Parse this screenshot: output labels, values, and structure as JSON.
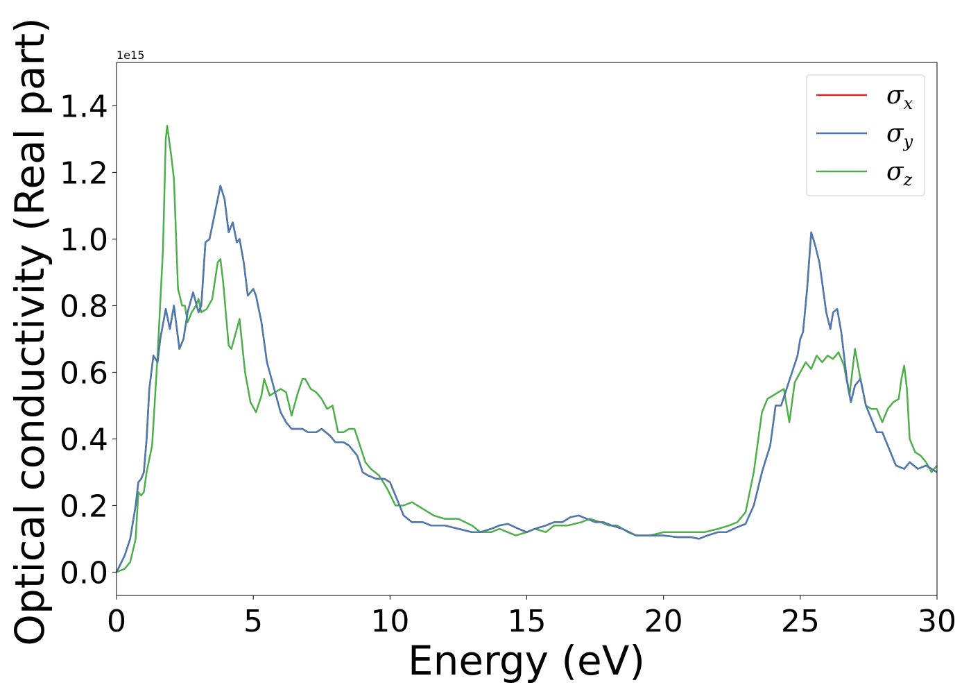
{
  "chart_data": {
    "type": "line",
    "title": "",
    "xlabel": "Energy (eV)",
    "ylabel": "Optical conductivity (Real part)",
    "y_offset_label": "1e15",
    "xlim": [
      0,
      30
    ],
    "ylim": [
      -0.07,
      1.53
    ],
    "xticks": [
      0,
      5,
      10,
      15,
      20,
      25,
      30
    ],
    "xtick_labels": [
      "0",
      "5",
      "10",
      "15",
      "20",
      "25",
      "30"
    ],
    "yticks": [
      0.0,
      0.2,
      0.4,
      0.6,
      0.8,
      1.0,
      1.2,
      1.4
    ],
    "ytick_labels": [
      "0.0",
      "0.2",
      "0.4",
      "0.6",
      "0.8",
      "1.0",
      "1.2",
      "1.4"
    ],
    "grid": false,
    "legend_position": "top-right",
    "series": [
      {
        "name": "σx",
        "legend_symbol": "σ",
        "legend_sub": "x",
        "color": "#d62728",
        "x": [
          0,
          0.3,
          0.5,
          0.7,
          0.8,
          0.9,
          1.0,
          1.1,
          1.2,
          1.35,
          1.5,
          1.6,
          1.8,
          1.95,
          2.1,
          2.3,
          2.45,
          2.6,
          2.8,
          3.0,
          3.1,
          3.25,
          3.4,
          3.6,
          3.8,
          3.95,
          4.1,
          4.25,
          4.4,
          4.5,
          4.65,
          4.8,
          5.0,
          5.1,
          5.3,
          5.5,
          5.8,
          6.0,
          6.2,
          6.4,
          6.6,
          6.8,
          7.0,
          7.3,
          7.5,
          7.8,
          8.0,
          8.3,
          8.5,
          8.8,
          9.0,
          9.2,
          9.5,
          9.8,
          10.0,
          10.2,
          10.5,
          10.8,
          11.2,
          11.5,
          12.0,
          12.5,
          13.0,
          13.3,
          13.7,
          14.0,
          14.3,
          14.7,
          15.0,
          15.3,
          15.7,
          16.0,
          16.3,
          16.6,
          16.9,
          17.2,
          17.5,
          17.8,
          18.1,
          18.5,
          19.0,
          19.5,
          20.0,
          20.5,
          21.0,
          21.3,
          21.6,
          22.0,
          22.3,
          22.7,
          23.0,
          23.3,
          23.6,
          23.9,
          24.1,
          24.3,
          24.5,
          24.7,
          24.9,
          25.0,
          25.1,
          25.25,
          25.4,
          25.55,
          25.7,
          25.8,
          25.95,
          26.1,
          26.2,
          26.35,
          26.5,
          26.7,
          26.85,
          27.0,
          27.2,
          27.4,
          27.6,
          27.8,
          28.0,
          28.2,
          28.5,
          28.8,
          29.0,
          29.3,
          29.6,
          29.8,
          30.0
        ],
        "values": [
          0,
          0.05,
          0.1,
          0.2,
          0.27,
          0.28,
          0.3,
          0.4,
          0.55,
          0.65,
          0.63,
          0.7,
          0.79,
          0.73,
          0.8,
          0.67,
          0.7,
          0.78,
          0.84,
          0.78,
          0.8,
          0.99,
          1.0,
          1.08,
          1.16,
          1.12,
          1.02,
          1.05,
          0.99,
          1.0,
          0.93,
          0.83,
          0.85,
          0.83,
          0.75,
          0.63,
          0.54,
          0.48,
          0.45,
          0.43,
          0.43,
          0.43,
          0.42,
          0.42,
          0.43,
          0.41,
          0.39,
          0.39,
          0.38,
          0.35,
          0.3,
          0.29,
          0.28,
          0.28,
          0.27,
          0.23,
          0.17,
          0.15,
          0.15,
          0.14,
          0.14,
          0.13,
          0.12,
          0.12,
          0.13,
          0.14,
          0.145,
          0.13,
          0.12,
          0.13,
          0.14,
          0.15,
          0.15,
          0.165,
          0.17,
          0.16,
          0.15,
          0.15,
          0.14,
          0.13,
          0.11,
          0.11,
          0.11,
          0.105,
          0.105,
          0.1,
          0.11,
          0.12,
          0.12,
          0.135,
          0.145,
          0.2,
          0.3,
          0.38,
          0.5,
          0.5,
          0.55,
          0.6,
          0.65,
          0.7,
          0.72,
          0.85,
          1.02,
          0.98,
          0.93,
          0.87,
          0.78,
          0.73,
          0.78,
          0.79,
          0.72,
          0.58,
          0.51,
          0.56,
          0.58,
          0.5,
          0.46,
          0.42,
          0.42,
          0.38,
          0.32,
          0.31,
          0.33,
          0.31,
          0.32,
          0.31,
          0.3
        ]
      },
      {
        "name": "σy",
        "legend_symbol": "σ",
        "legend_sub": "y",
        "color": "#4a7bb0",
        "x": [
          0,
          0.3,
          0.5,
          0.7,
          0.8,
          0.9,
          1.0,
          1.1,
          1.2,
          1.35,
          1.5,
          1.6,
          1.8,
          1.95,
          2.1,
          2.3,
          2.45,
          2.6,
          2.8,
          3.0,
          3.1,
          3.25,
          3.4,
          3.6,
          3.8,
          3.95,
          4.1,
          4.25,
          4.4,
          4.5,
          4.65,
          4.8,
          5.0,
          5.1,
          5.3,
          5.5,
          5.8,
          6.0,
          6.2,
          6.4,
          6.6,
          6.8,
          7.0,
          7.3,
          7.5,
          7.8,
          8.0,
          8.3,
          8.5,
          8.8,
          9.0,
          9.2,
          9.5,
          9.8,
          10.0,
          10.2,
          10.5,
          10.8,
          11.2,
          11.5,
          12.0,
          12.5,
          13.0,
          13.3,
          13.7,
          14.0,
          14.3,
          14.7,
          15.0,
          15.3,
          15.7,
          16.0,
          16.3,
          16.6,
          16.9,
          17.2,
          17.5,
          17.8,
          18.1,
          18.5,
          19.0,
          19.5,
          20.0,
          20.5,
          21.0,
          21.3,
          21.6,
          22.0,
          22.3,
          22.7,
          23.0,
          23.3,
          23.6,
          23.9,
          24.1,
          24.3,
          24.5,
          24.7,
          24.9,
          25.0,
          25.1,
          25.25,
          25.4,
          25.55,
          25.7,
          25.8,
          25.95,
          26.1,
          26.2,
          26.35,
          26.5,
          26.7,
          26.85,
          27.0,
          27.2,
          27.4,
          27.6,
          27.8,
          28.0,
          28.2,
          28.5,
          28.8,
          29.0,
          29.3,
          29.6,
          29.8,
          30.0
        ],
        "values": [
          0,
          0.05,
          0.1,
          0.2,
          0.27,
          0.28,
          0.3,
          0.4,
          0.55,
          0.65,
          0.63,
          0.7,
          0.79,
          0.73,
          0.8,
          0.67,
          0.7,
          0.78,
          0.84,
          0.78,
          0.8,
          0.99,
          1.0,
          1.08,
          1.16,
          1.12,
          1.02,
          1.05,
          0.99,
          1.0,
          0.93,
          0.83,
          0.85,
          0.83,
          0.75,
          0.63,
          0.54,
          0.48,
          0.45,
          0.43,
          0.43,
          0.43,
          0.42,
          0.42,
          0.43,
          0.41,
          0.39,
          0.39,
          0.38,
          0.35,
          0.3,
          0.29,
          0.28,
          0.28,
          0.27,
          0.23,
          0.17,
          0.15,
          0.15,
          0.14,
          0.14,
          0.13,
          0.12,
          0.12,
          0.13,
          0.14,
          0.145,
          0.13,
          0.12,
          0.13,
          0.14,
          0.15,
          0.15,
          0.165,
          0.17,
          0.16,
          0.15,
          0.15,
          0.14,
          0.13,
          0.11,
          0.11,
          0.11,
          0.105,
          0.105,
          0.1,
          0.11,
          0.12,
          0.12,
          0.135,
          0.145,
          0.2,
          0.3,
          0.38,
          0.5,
          0.5,
          0.55,
          0.6,
          0.65,
          0.7,
          0.72,
          0.85,
          1.02,
          0.98,
          0.93,
          0.87,
          0.78,
          0.73,
          0.78,
          0.79,
          0.72,
          0.58,
          0.51,
          0.56,
          0.58,
          0.5,
          0.46,
          0.42,
          0.42,
          0.38,
          0.32,
          0.31,
          0.33,
          0.31,
          0.32,
          0.31,
          0.3
        ]
      },
      {
        "name": "σz",
        "legend_symbol": "σ",
        "legend_sub": "z",
        "color": "#4daf4a",
        "x": [
          0,
          0.3,
          0.5,
          0.7,
          0.8,
          0.9,
          1.0,
          1.1,
          1.3,
          1.5,
          1.7,
          1.8,
          1.85,
          2.0,
          2.1,
          2.25,
          2.4,
          2.5,
          2.6,
          2.75,
          2.9,
          3.0,
          3.1,
          3.3,
          3.5,
          3.7,
          3.8,
          3.9,
          4.1,
          4.2,
          4.4,
          4.5,
          4.7,
          4.9,
          5.1,
          5.3,
          5.4,
          5.6,
          5.8,
          6.0,
          6.2,
          6.4,
          6.6,
          6.8,
          6.9,
          7.1,
          7.3,
          7.5,
          7.7,
          7.9,
          8.1,
          8.3,
          8.5,
          8.7,
          8.9,
          9.1,
          9.3,
          9.6,
          9.9,
          10.2,
          10.5,
          10.8,
          11.2,
          11.6,
          12.0,
          12.5,
          13.0,
          13.3,
          13.7,
          14.0,
          14.3,
          14.6,
          15.0,
          15.3,
          15.7,
          16.0,
          16.5,
          17.0,
          17.3,
          17.7,
          18.0,
          18.3,
          18.7,
          19.0,
          19.5,
          20.0,
          20.5,
          21.0,
          21.5,
          22.0,
          22.4,
          22.7,
          23.0,
          23.3,
          23.6,
          23.8,
          24.0,
          24.2,
          24.4,
          24.6,
          24.8,
          25.0,
          25.2,
          25.4,
          25.6,
          25.8,
          26.0,
          26.2,
          26.4,
          26.6,
          26.8,
          27.0,
          27.2,
          27.4,
          27.6,
          27.8,
          28.0,
          28.2,
          28.4,
          28.6,
          28.7,
          28.8,
          28.9,
          29.0,
          29.2,
          29.4,
          29.6,
          29.8,
          30.0
        ],
        "values": [
          0,
          0.01,
          0.03,
          0.1,
          0.24,
          0.23,
          0.24,
          0.3,
          0.38,
          0.65,
          0.97,
          1.3,
          1.34,
          1.25,
          1.18,
          0.85,
          0.8,
          0.8,
          0.75,
          0.78,
          0.8,
          0.82,
          0.78,
          0.79,
          0.82,
          0.93,
          0.94,
          0.87,
          0.68,
          0.67,
          0.73,
          0.76,
          0.6,
          0.51,
          0.48,
          0.53,
          0.58,
          0.53,
          0.54,
          0.55,
          0.54,
          0.47,
          0.53,
          0.58,
          0.58,
          0.55,
          0.54,
          0.52,
          0.49,
          0.5,
          0.42,
          0.42,
          0.43,
          0.43,
          0.38,
          0.33,
          0.31,
          0.29,
          0.25,
          0.2,
          0.2,
          0.21,
          0.19,
          0.17,
          0.16,
          0.16,
          0.14,
          0.12,
          0.12,
          0.13,
          0.12,
          0.11,
          0.12,
          0.13,
          0.12,
          0.14,
          0.14,
          0.15,
          0.16,
          0.15,
          0.14,
          0.14,
          0.12,
          0.11,
          0.11,
          0.12,
          0.12,
          0.12,
          0.12,
          0.13,
          0.14,
          0.15,
          0.18,
          0.3,
          0.48,
          0.52,
          0.53,
          0.54,
          0.55,
          0.45,
          0.57,
          0.6,
          0.63,
          0.61,
          0.65,
          0.63,
          0.65,
          0.64,
          0.66,
          0.62,
          0.53,
          0.67,
          0.58,
          0.5,
          0.49,
          0.49,
          0.45,
          0.49,
          0.51,
          0.52,
          0.58,
          0.62,
          0.55,
          0.4,
          0.36,
          0.35,
          0.33,
          0.3,
          0.32
        ]
      }
    ]
  }
}
